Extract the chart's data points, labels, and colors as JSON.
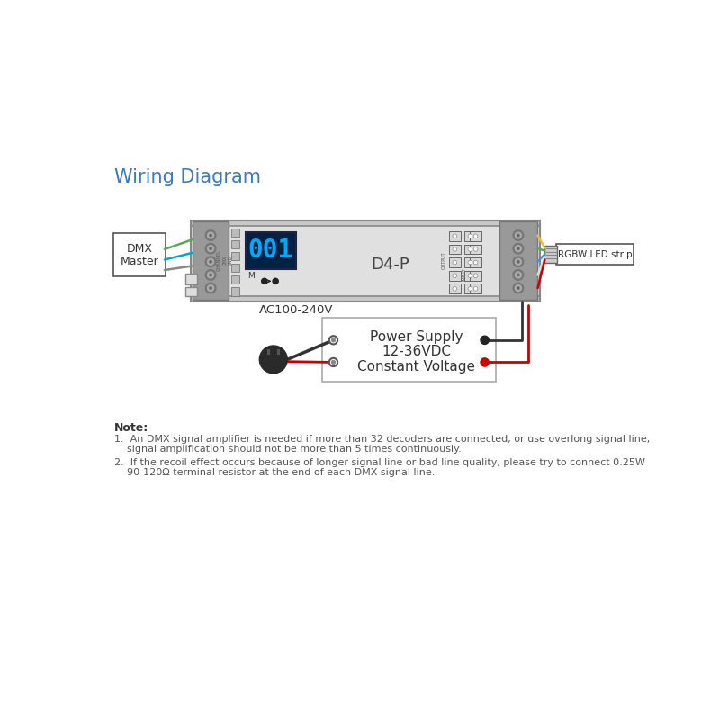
{
  "bg_color": "#ffffff",
  "title": "Wiring Diagram",
  "title_color": "#3a7abf",
  "title_fontsize": 15,
  "note_header": "Note:",
  "note1_a": "1.  An DMX signal amplifier is needed if more than 32 decoders are connected, or use overlong signal line,",
  "note1_b": "    signal amplification should not be more than 5 times continuously.",
  "note2_a": "2.  If the recoil effect occurs because of longer signal line or bad line quality, please try to connect 0.25W",
  "note2_b": "    90-120Ω terminal resistor at the end of each DMX signal line.",
  "dmx_label1": "DMX",
  "dmx_label2": "Master",
  "d4p_label": "D4-P",
  "display_text": "001",
  "rgbw_label": "RGBW LED strip",
  "power_line1": "Power Supply",
  "power_line2": "12-36VDC",
  "power_line3": "Constant Voltage",
  "ac_label": "AC100-240V",
  "line_color": "#333333",
  "red_color": "#cc0000",
  "blue_wire": "#4a90d9",
  "green_wire": "#5aaa55",
  "yellow_wire": "#e8c030",
  "white_wire": "#dddddd",
  "cyan_wire": "#00aacc",
  "display_color": "#00aaff",
  "grey_panel": "#aaaaaa",
  "light_grey": "#d8d8d8",
  "mid_grey": "#bbbbbb",
  "ctrl_face": "#e0e0e0"
}
